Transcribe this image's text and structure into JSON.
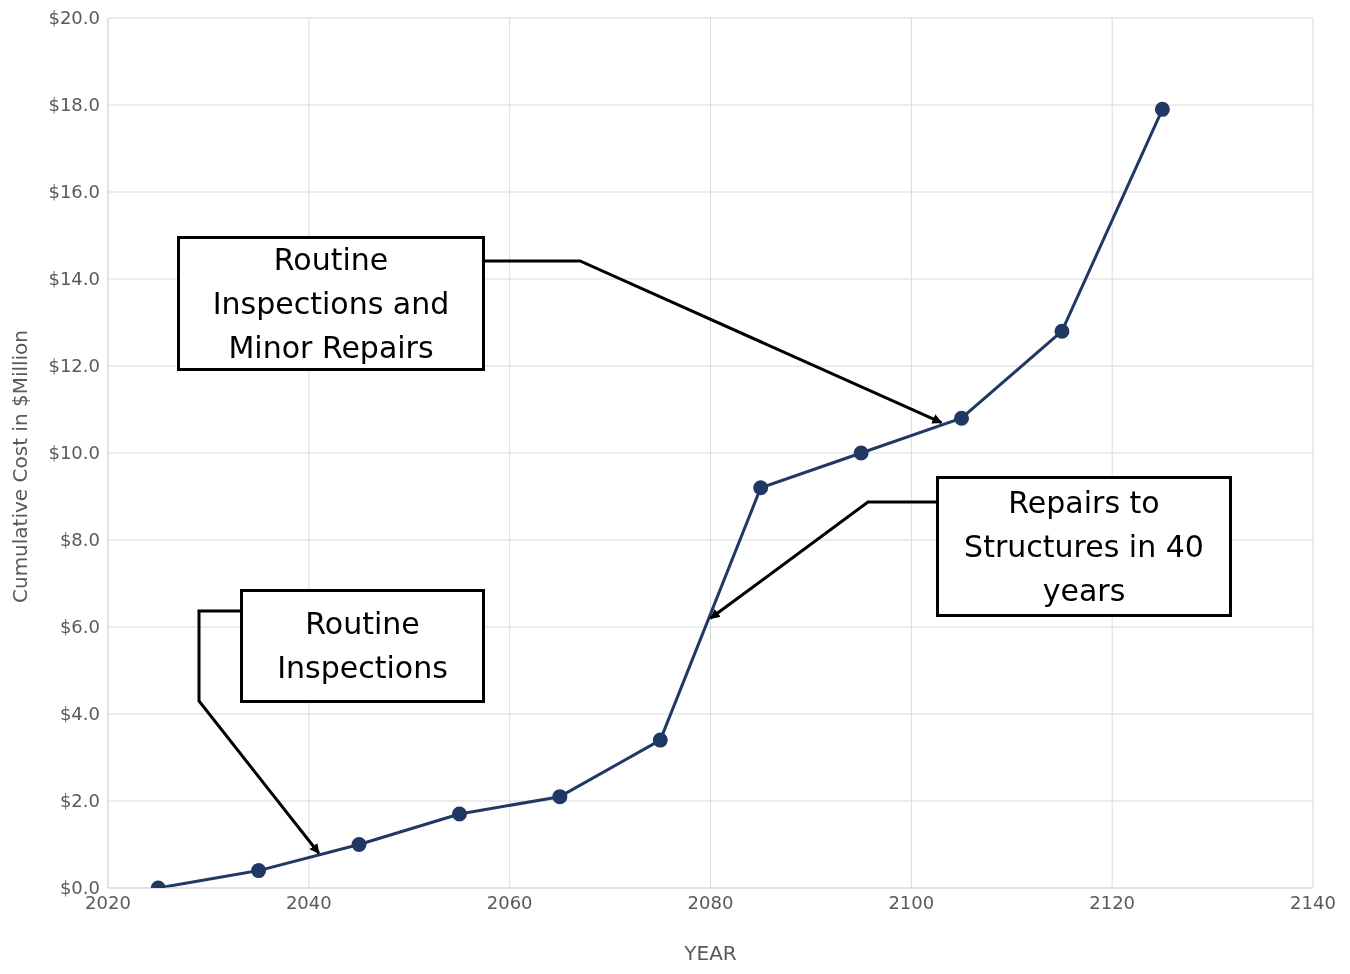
{
  "chart_data": {
    "type": "line",
    "xlabel": "YEAR",
    "ylabel": "Cumulative Cost in $Million",
    "x": [
      2025,
      2035,
      2045,
      2055,
      2065,
      2075,
      2085,
      2095,
      2105,
      2115,
      2125
    ],
    "series": [
      {
        "color": "#203864",
        "values": [
          0,
          0.4,
          1.0,
          1.7,
          2.1,
          3.4,
          9.2,
          10.0,
          10.8,
          12.8,
          17.9
        ]
      }
    ],
    "xlim": [
      2020,
      2140
    ],
    "xticks": [
      2020,
      2040,
      2060,
      2080,
      2100,
      2120,
      2140
    ],
    "ylim": [
      0,
      20
    ],
    "yticks": [
      {
        "value": 0,
        "label": "$0.0"
      },
      {
        "value": 2,
        "label": "$2.0"
      },
      {
        "value": 4,
        "label": "$4.0"
      },
      {
        "value": 6,
        "label": "$6.0"
      },
      {
        "value": 8,
        "label": "$8.0"
      },
      {
        "value": 10,
        "label": "$10.0"
      },
      {
        "value": 12,
        "label": "$12.0"
      },
      {
        "value": 14,
        "label": "$14.0"
      },
      {
        "value": 16,
        "label": "$16.0"
      },
      {
        "value": 18,
        "label": "$18.0"
      },
      {
        "value": 20,
        "label": "$20.0"
      }
    ],
    "grid": true,
    "legend": false,
    "marker": "circle",
    "line_style": "solid",
    "annotations": [
      {
        "text": "Routine Inspections and Minor Repairs",
        "x": 2103,
        "y": 10.7
      },
      {
        "text": "Routine Inspections",
        "x": 2041,
        "y": 0.8
      },
      {
        "text": "Repairs to Structures in 40 years",
        "x": 2080,
        "y": 6.2
      }
    ]
  }
}
